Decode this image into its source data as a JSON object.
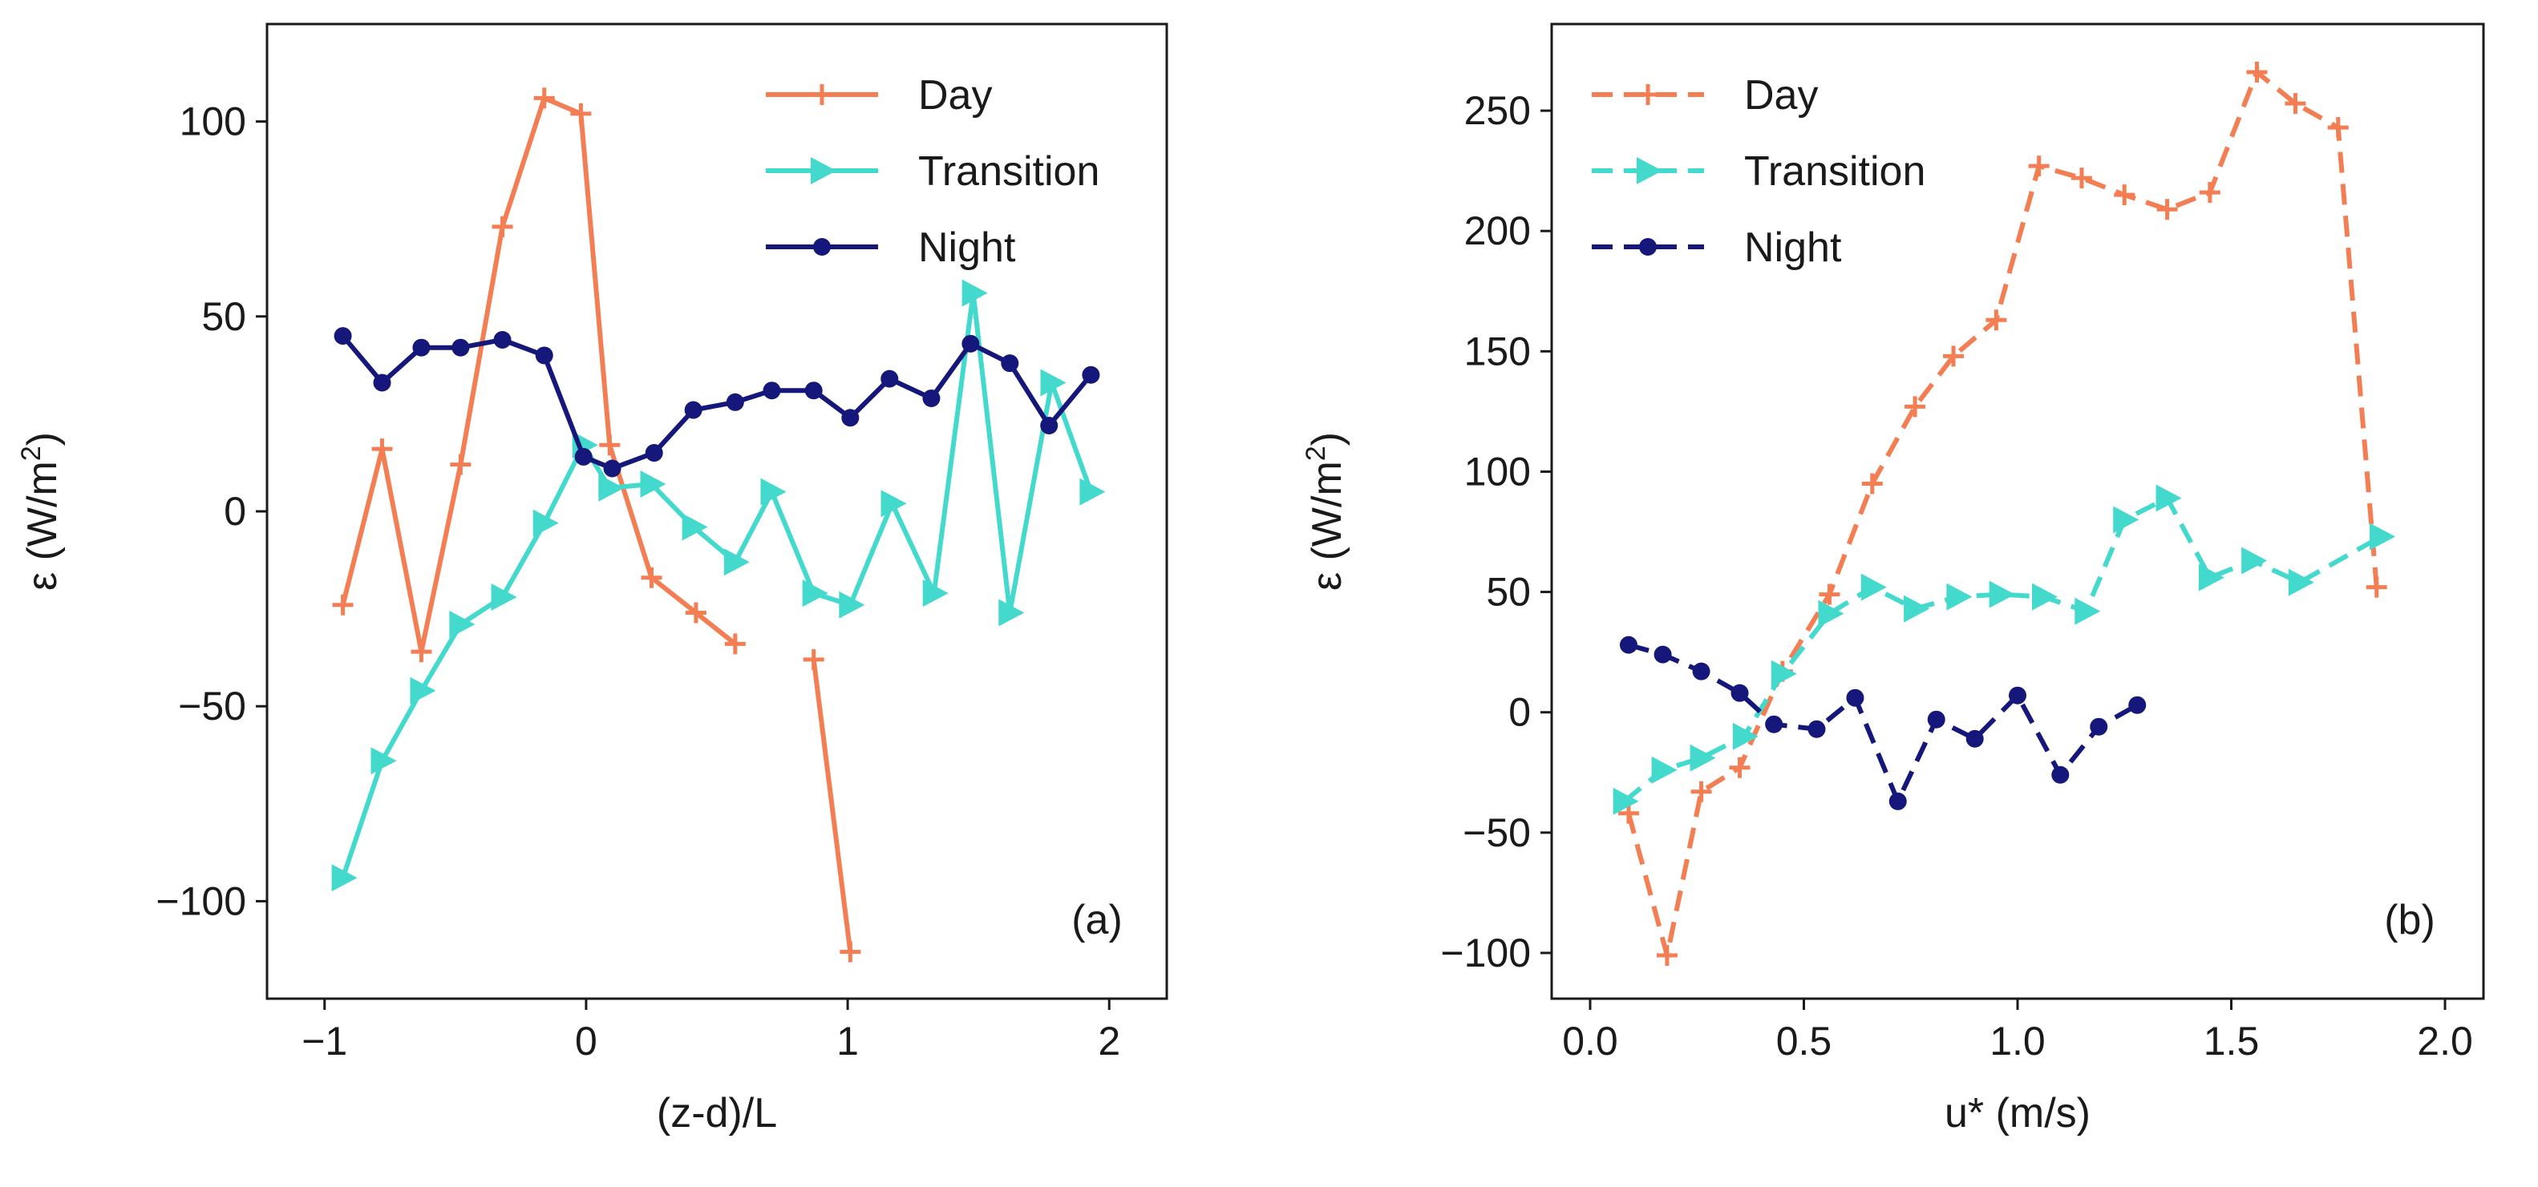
{
  "colors": {
    "day": "#F47E53",
    "transition": "#43D9CD",
    "night": "#15177A"
  },
  "chart_data": [
    {
      "type": "line",
      "panel": "(a)",
      "xlabel": "(z-d)/L",
      "ylabel_main": "ε (W/m",
      "ylabel_sup": "2",
      "ylabel_tail": ")",
      "xlim": [
        -1.22,
        2.22
      ],
      "ylim": [
        -125,
        125
      ],
      "xticks": [
        -1,
        0,
        1,
        2
      ],
      "xtick_labels": [
        "−1",
        "0",
        "1",
        "2"
      ],
      "yticks": [
        -100,
        -50,
        0,
        50,
        100
      ],
      "ytick_labels": [
        "−100",
        "−50",
        "0",
        "50",
        "100"
      ],
      "line_style": "solid",
      "legend_position": "top-right",
      "panel_label_position": "bottom-right",
      "series": [
        {
          "name": "Day",
          "key": "day",
          "marker": "plus",
          "segments": [
            [
              [
                -0.93,
                -24
              ],
              [
                -0.78,
                16
              ],
              [
                -0.63,
                -36
              ],
              [
                -0.48,
                12
              ],
              [
                -0.32,
                73
              ],
              [
                -0.16,
                106
              ],
              [
                -0.02,
                102
              ],
              [
                0.09,
                17
              ],
              [
                0.25,
                -17
              ],
              [
                0.42,
                -26
              ],
              [
                0.57,
                -34
              ]
            ],
            [
              [
                0.87,
                -38
              ],
              [
                1.01,
                -113
              ]
            ]
          ]
        },
        {
          "name": "Transition",
          "key": "transition",
          "marker": "triangle-right",
          "segments": [
            [
              [
                -0.93,
                -94
              ],
              [
                -0.78,
                -64
              ],
              [
                -0.63,
                -46
              ],
              [
                -0.48,
                -29
              ],
              [
                -0.32,
                -22
              ],
              [
                -0.16,
                -3
              ],
              [
                -0.01,
                17
              ],
              [
                0.09,
                6
              ],
              [
                0.25,
                7
              ],
              [
                0.41,
                -4
              ],
              [
                0.57,
                -13
              ],
              [
                0.71,
                5
              ],
              [
                0.87,
                -21
              ],
              [
                1.01,
                -24
              ],
              [
                1.17,
                2
              ],
              [
                1.33,
                -21
              ],
              [
                1.48,
                56
              ],
              [
                1.62,
                -26
              ],
              [
                1.78,
                33
              ],
              [
                1.93,
                5
              ]
            ]
          ]
        },
        {
          "name": "Night",
          "key": "night",
          "marker": "circle",
          "segments": [
            [
              [
                -0.93,
                45
              ],
              [
                -0.78,
                33
              ],
              [
                -0.63,
                42
              ],
              [
                -0.48,
                42
              ],
              [
                -0.32,
                44
              ],
              [
                -0.16,
                40
              ],
              [
                -0.01,
                14
              ],
              [
                0.1,
                11
              ],
              [
                0.26,
                15
              ],
              [
                0.41,
                26
              ],
              [
                0.57,
                28
              ],
              [
                0.71,
                31
              ],
              [
                0.87,
                31
              ],
              [
                1.01,
                24
              ],
              [
                1.16,
                34
              ],
              [
                1.32,
                29
              ],
              [
                1.47,
                43
              ],
              [
                1.62,
                38
              ],
              [
                1.77,
                22
              ],
              [
                1.93,
                35
              ]
            ]
          ]
        }
      ]
    },
    {
      "type": "line",
      "panel": "(b)",
      "xlabel": "u* (m/s)",
      "ylabel_main": "ε (W/m",
      "ylabel_sup": "2",
      "ylabel_tail": ")",
      "xlim": [
        -0.09,
        2.09
      ],
      "ylim": [
        -119,
        286
      ],
      "xticks": [
        0.0,
        0.5,
        1.0,
        1.5,
        2.0
      ],
      "xtick_labels": [
        "0.0",
        "0.5",
        "1.0",
        "1.5",
        "2.0"
      ],
      "yticks": [
        -100,
        -50,
        0,
        50,
        100,
        150,
        200,
        250
      ],
      "ytick_labels": [
        "−100",
        "−50",
        "0",
        "50",
        "100",
        "150",
        "200",
        "250"
      ],
      "line_style": "dashed",
      "legend_position": "top-left",
      "panel_label_position": "bottom-right",
      "series": [
        {
          "name": "Day",
          "key": "day",
          "marker": "plus",
          "segments": [
            [
              [
                0.09,
                -42
              ],
              [
                0.18,
                -101
              ],
              [
                0.26,
                -33
              ],
              [
                0.35,
                -23
              ],
              [
                0.45,
                17
              ],
              [
                0.56,
                49
              ],
              [
                0.66,
                95
              ],
              [
                0.76,
                127
              ],
              [
                0.85,
                148
              ],
              [
                0.95,
                163
              ],
              [
                1.05,
                227
              ],
              [
                1.15,
                222
              ],
              [
                1.25,
                215
              ],
              [
                1.35,
                209
              ],
              [
                1.45,
                216
              ],
              [
                1.56,
                266
              ],
              [
                1.65,
                253
              ],
              [
                1.75,
                243
              ],
              [
                1.84,
                52
              ]
            ]
          ]
        },
        {
          "name": "Transition",
          "key": "transition",
          "marker": "triangle-right",
          "segments": [
            [
              [
                0.08,
                -37
              ],
              [
                0.17,
                -24
              ],
              [
                0.26,
                -19
              ],
              [
                0.36,
                -10
              ],
              [
                0.45,
                16
              ],
              [
                0.56,
                41
              ],
              [
                0.66,
                52
              ],
              [
                0.76,
                43
              ],
              [
                0.86,
                48
              ],
              [
                0.96,
                49
              ],
              [
                1.06,
                48
              ],
              [
                1.16,
                42
              ],
              [
                1.25,
                80
              ],
              [
                1.35,
                89
              ],
              [
                1.45,
                56
              ],
              [
                1.55,
                63
              ],
              [
                1.66,
                54
              ],
              [
                1.85,
                73
              ]
            ]
          ]
        },
        {
          "name": "Night",
          "key": "night",
          "marker": "circle",
          "segments": [
            [
              [
                0.09,
                28
              ],
              [
                0.17,
                24
              ],
              [
                0.26,
                17
              ],
              [
                0.35,
                8
              ],
              [
                0.43,
                -5
              ],
              [
                0.53,
                -7
              ],
              [
                0.62,
                6
              ],
              [
                0.72,
                -37
              ],
              [
                0.81,
                -3
              ],
              [
                0.9,
                -11
              ],
              [
                1.0,
                7
              ],
              [
                1.1,
                -26
              ],
              [
                1.19,
                -6
              ],
              [
                1.28,
                3
              ]
            ]
          ]
        }
      ]
    }
  ]
}
